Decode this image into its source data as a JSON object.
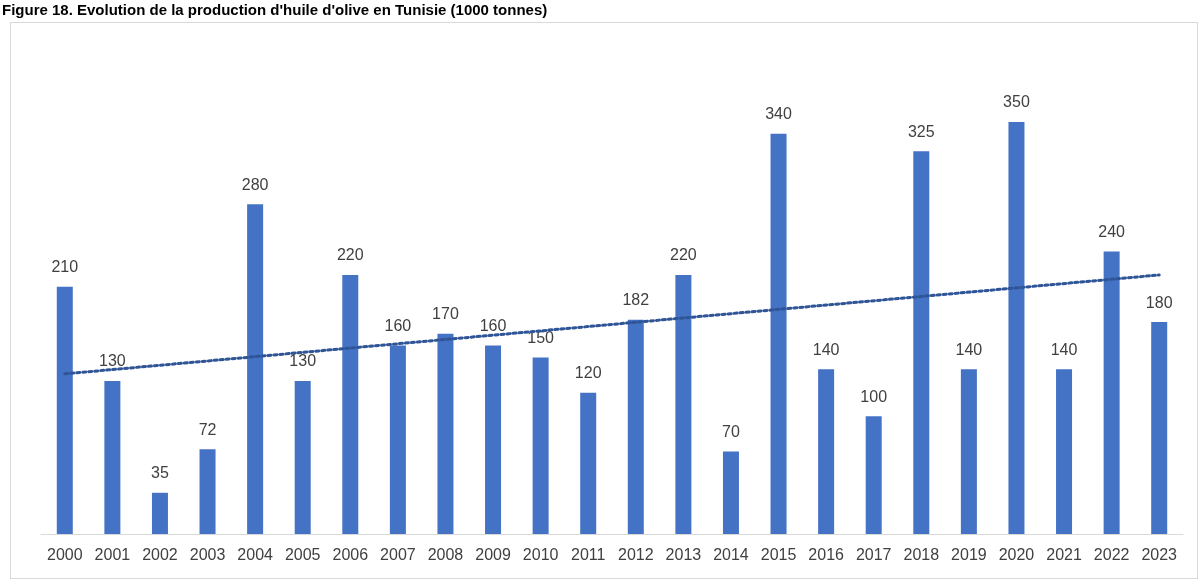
{
  "chart_data": {
    "type": "bar",
    "title": "Figure 18. Evolution de la production d'huile d'olive en Tunisie (1000 tonnes)",
    "categories": [
      "2000",
      "2001",
      "2002",
      "2003",
      "2004",
      "2005",
      "2006",
      "2007",
      "2008",
      "2009",
      "2010",
      "2011",
      "2012",
      "2013",
      "2014",
      "2015",
      "2016",
      "2017",
      "2018",
      "2019",
      "2020",
      "2021",
      "2022",
      "2023"
    ],
    "series": [
      {
        "color": "#4472c4",
        "values": [
          210,
          130,
          35,
          72,
          280,
          130,
          220,
          160,
          170,
          160,
          150,
          120,
          182,
          220,
          70,
          340,
          140,
          100,
          325,
          140,
          350,
          140,
          240,
          180
        ],
        "value_labels": [
          "210",
          "130",
          "35",
          "72",
          "280",
          "130",
          "220",
          "160",
          "170",
          "160",
          "150",
          "120",
          "182",
          "220",
          "70",
          "340",
          "140",
          "100",
          "325",
          "140",
          "350",
          "140",
          "240",
          "180"
        ]
      },
      {
        "type": "line",
        "color": "#2f5597",
        "line_style": "dotted",
        "values": [
          136,
          null,
          null,
          null,
          null,
          null,
          null,
          null,
          null,
          null,
          null,
          null,
          null,
          null,
          null,
          null,
          null,
          null,
          null,
          null,
          null,
          null,
          null,
          220
        ]
      }
    ]
  }
}
